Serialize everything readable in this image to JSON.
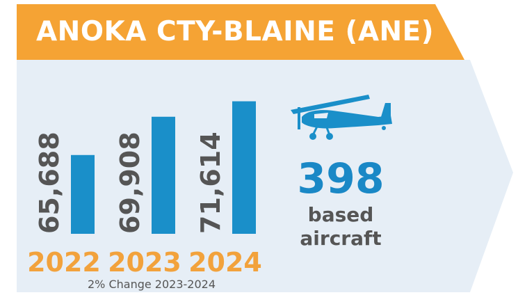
{
  "header": {
    "title": "ANOKA CTY-BLAINE (ANE)"
  },
  "chart_data": {
    "type": "bar",
    "categories": [
      "2022",
      "2023",
      "2024"
    ],
    "values": [
      65688,
      69908,
      71614
    ],
    "value_labels": [
      "65,688",
      "69,908",
      "71,614"
    ],
    "note": "2% Change 2023-2024"
  },
  "stat": {
    "number": "398",
    "label_line1": "based",
    "label_line2": "aircraft"
  },
  "colors": {
    "header_orange": "#f5a334",
    "panel_bg": "#e6eef6",
    "bar_blue": "#1a8fc9",
    "year_orange": "#f2a23c",
    "text_gray": "#555555",
    "stat_blue": "#1a88c6"
  },
  "icons": {
    "plane": "airplane-icon"
  }
}
